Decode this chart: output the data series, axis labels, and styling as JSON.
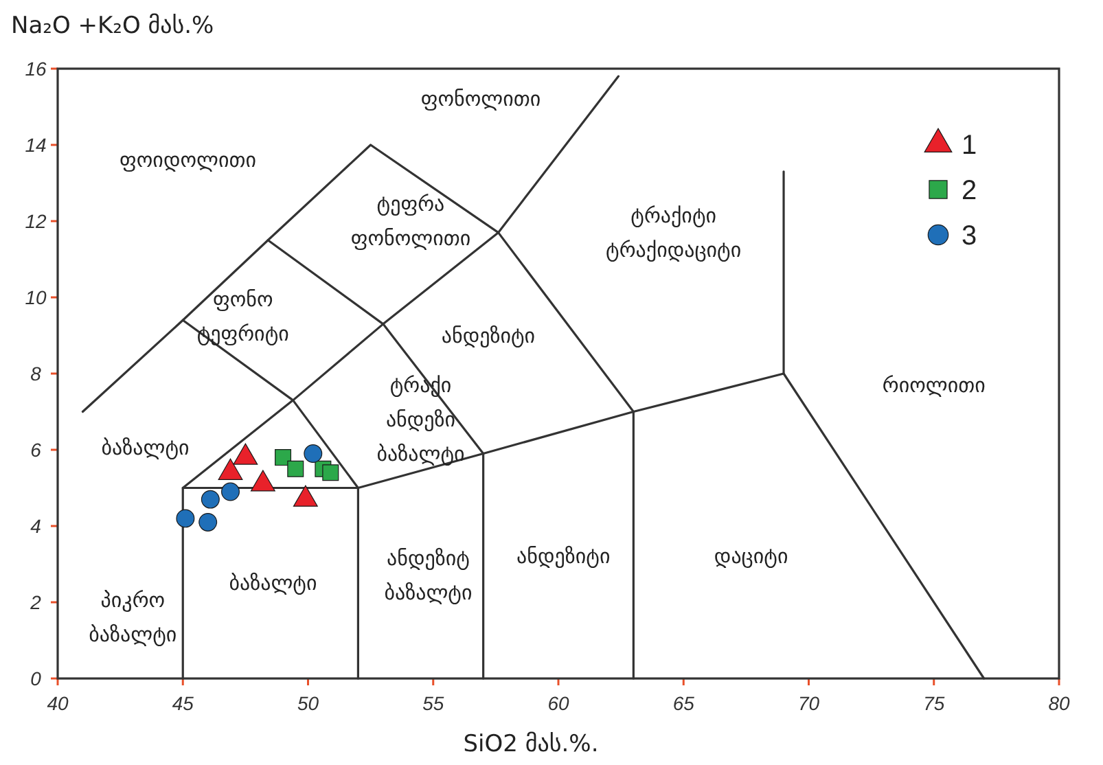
{
  "chart_data": {
    "type": "scatter",
    "ylabel": "Na₂O +K₂O მას.%",
    "xlabel": "SiO2 მას.%.",
    "xlim": [
      40,
      80
    ],
    "xticks": [
      40,
      45,
      50,
      55,
      60,
      65,
      70,
      75,
      80
    ],
    "ylim": [
      0,
      16
    ],
    "yticks": [
      0,
      2,
      4,
      6,
      8,
      10,
      12,
      14,
      16
    ],
    "grid": false,
    "legend": "top right",
    "series": [
      {
        "name": "1",
        "marker": "triangle",
        "color": "#e8212a",
        "x": [
          47.5,
          46.9,
          48.2,
          49.9
        ],
        "values": [
          5.8,
          5.4,
          5.1,
          4.7
        ]
      },
      {
        "name": "2",
        "marker": "square",
        "color": "#2ca84a",
        "x": [
          49.0,
          49.5,
          50.6,
          50.9
        ],
        "values": [
          5.8,
          5.5,
          5.5,
          5.4
        ]
      },
      {
        "name": "3",
        "marker": "circle",
        "color": "#1f6fb8",
        "x": [
          50.2,
          46.9,
          46.1,
          45.1,
          46.0
        ],
        "values": [
          5.9,
          4.9,
          4.7,
          4.2,
          4.1
        ]
      },
      {
        "type": "line",
        "marker": "none",
        "color": "#333333",
        "x": [
          41,
          45,
          48.4,
          52.5,
          57.6,
          63,
          69,
          77
        ],
        "values": [
          7,
          9.4,
          11.5,
          14,
          11.7,
          7,
          8,
          0
        ]
      },
      {
        "type": "line",
        "marker": "none",
        "color": "#333333",
        "x": [
          45,
          45,
          52,
          52
        ],
        "values": [
          0,
          5,
          5,
          0
        ]
      },
      {
        "type": "line",
        "marker": "none",
        "color": "#333333",
        "x": [
          45,
          49.4,
          53,
          57.6,
          62.4
        ],
        "values": [
          5,
          7.3,
          9.3,
          11.7,
          15.8
        ]
      },
      {
        "type": "line",
        "marker": "none",
        "color": "#333333",
        "x": [
          45,
          49.4,
          52
        ],
        "values": [
          9.4,
          7.3,
          5
        ]
      },
      {
        "type": "line",
        "marker": "none",
        "color": "#333333",
        "x": [
          48.4,
          53,
          57,
          57
        ],
        "values": [
          11.5,
          9.3,
          5.9,
          0
        ]
      },
      {
        "type": "line",
        "marker": "none",
        "color": "#333333",
        "x": [
          52,
          57,
          63,
          63
        ],
        "values": [
          5,
          5.9,
          7,
          0
        ]
      },
      {
        "type": "line",
        "marker": "none",
        "color": "#333333",
        "x": [
          69,
          69
        ],
        "values": [
          8,
          13.3
        ]
      }
    ],
    "annotations": [
      "ფონოლითი",
      "ფოიდოლითი",
      "ტეფრა\nფონოლითი",
      "ტრაქიტი\nტრაქიდაციტი",
      "ფონო\nტეფრიტი",
      "ანდეზიტი",
      "რიოლითი",
      "ტრაქი\nანდეზი\nბაზალტი",
      "ბაზალტი",
      "ანდეზიტ\nბაზალტი",
      "ანდეზიტი",
      "დაციტი",
      "ბაზალტი",
      "პიკრო\nბაზალტი"
    ]
  }
}
